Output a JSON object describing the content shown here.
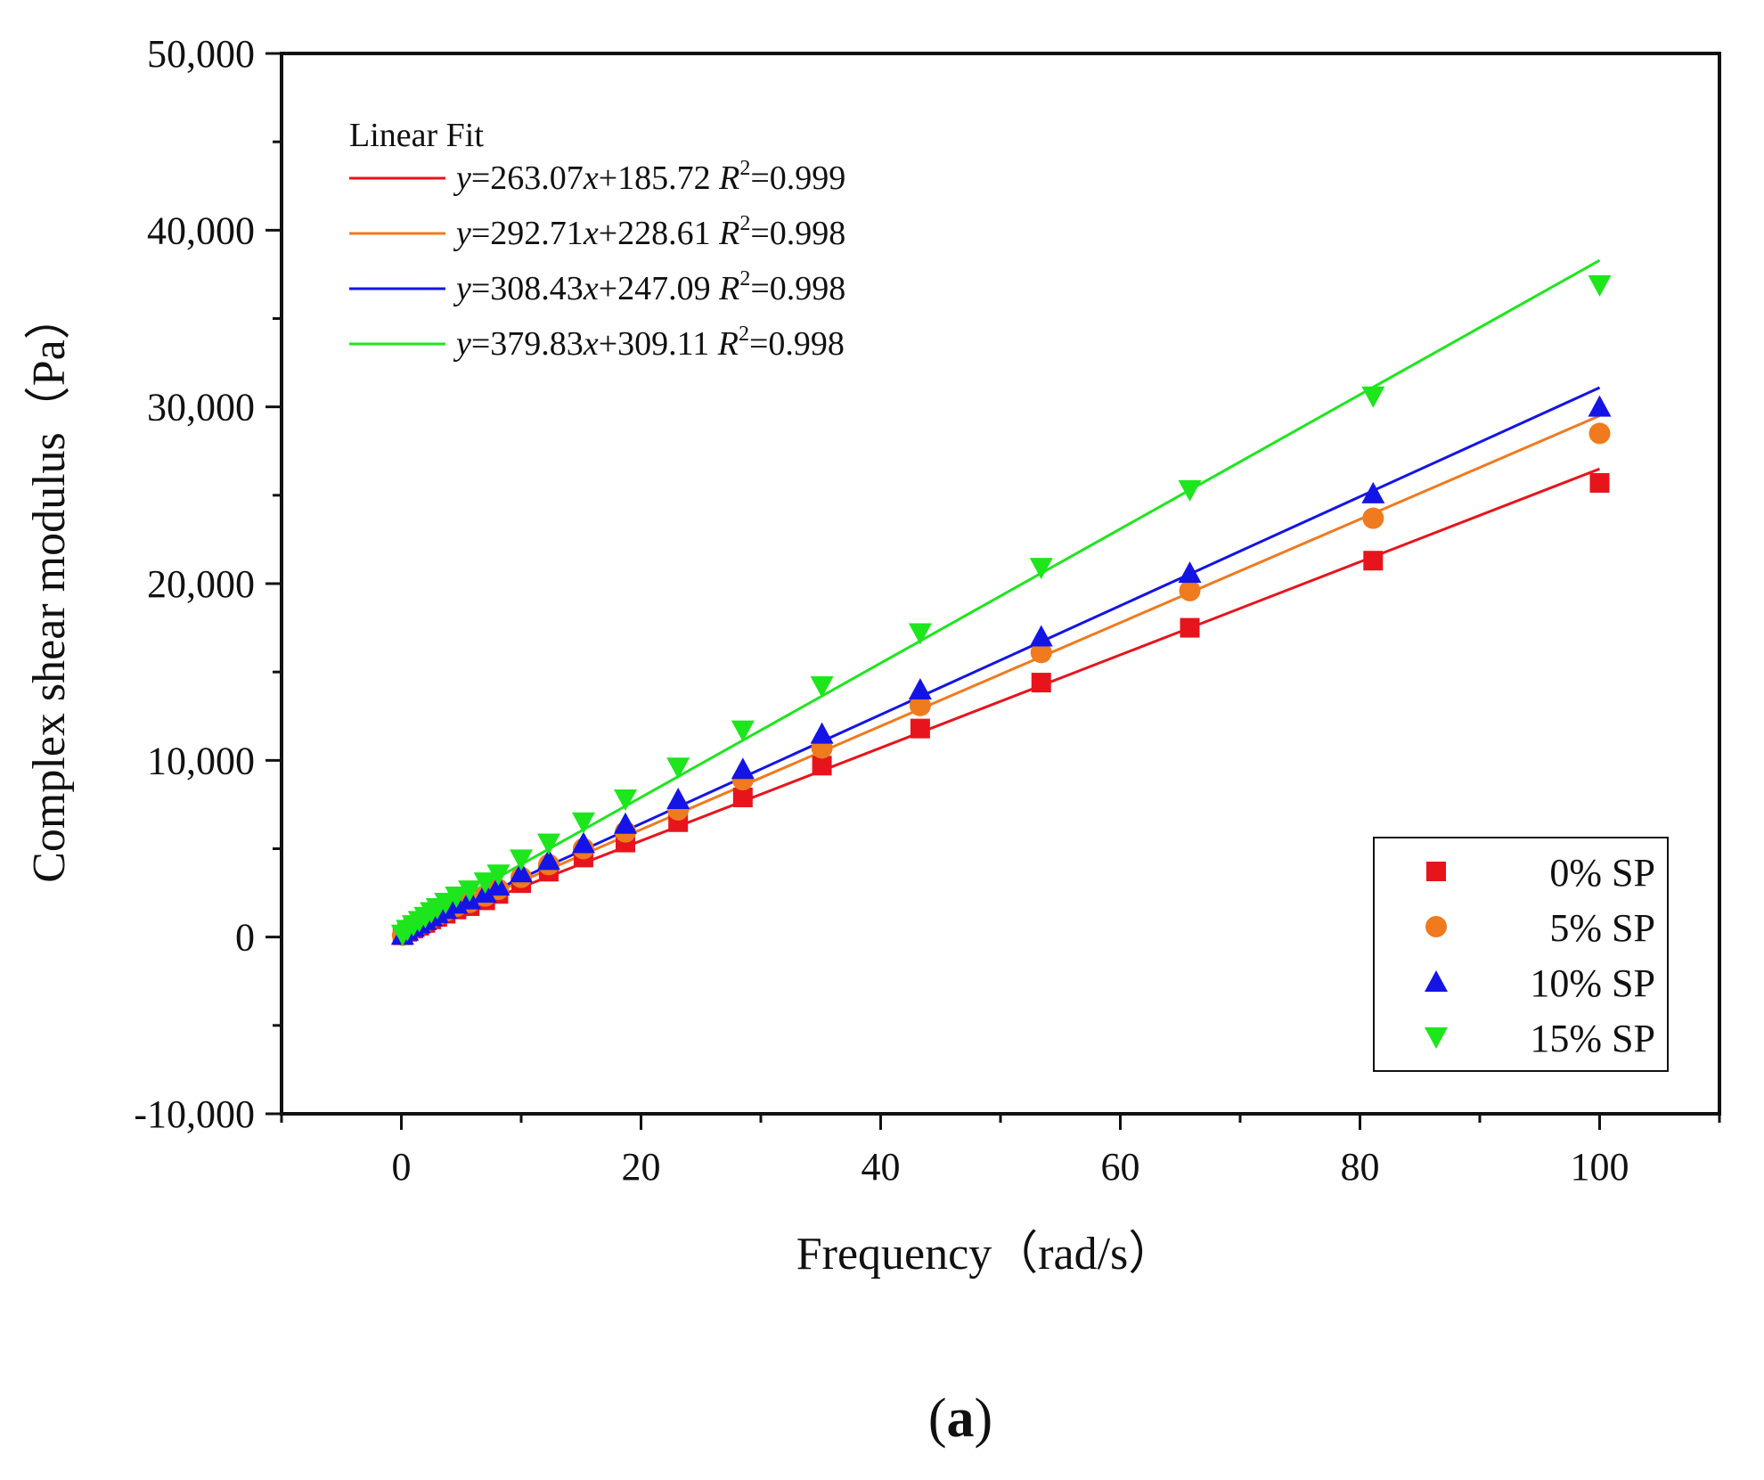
{
  "chart_data": {
    "type": "scatter",
    "xlabel": "Frequency（rad/s）",
    "ylabel": "Complex shear modulus（Pa）",
    "xlim": [
      -10,
      110
    ],
    "ylim": [
      -10000,
      50000
    ],
    "x_ticks": [
      0,
      20,
      40,
      60,
      80,
      100
    ],
    "x_tick_labels": [
      "0",
      "20",
      "40",
      "60",
      "80",
      "100"
    ],
    "y_ticks": [
      -10000,
      0,
      10000,
      20000,
      30000,
      40000,
      50000
    ],
    "y_tick_labels": [
      "-10,000",
      "0",
      "10,000",
      "20,000",
      "30,000",
      "40,000",
      "50,000"
    ],
    "fit_legend": {
      "title": "Linear Fit",
      "placement": "top-left",
      "entries": [
        {
          "label": "y=263.07x+185.72 R2=0.999",
          "y": "y",
          "rest": "=263.07",
          "xvar": "x",
          "rest2": "+185.72 ",
          "R": "R",
          "sup": "2",
          "r2": "=0.999"
        },
        {
          "label": "y=292.71x+228.61 R2=0.998",
          "y": "y",
          "rest": "=292.71",
          "xvar": "x",
          "rest2": "+228.61 ",
          "R": "R",
          "sup": "2",
          "r2": "=0.998"
        },
        {
          "label": "y=308.43x+247.09 R2=0.998",
          "y": "y",
          "rest": "=308.43",
          "xvar": "x",
          "rest2": "+247.09 ",
          "R": "R",
          "sup": "2",
          "r2": "=0.998"
        },
        {
          "label": "y=379.83x+309.11 R2=0.998",
          "y": "y",
          "rest": "=379.83",
          "xvar": "x",
          "rest2": "+309.11 ",
          "R": "R",
          "sup": "2",
          "r2": "=0.998"
        }
      ]
    },
    "x": [
      0.1,
      0.5,
      1,
      1.5,
      2,
      2.5,
      3,
      3.7,
      4.6,
      5.7,
      7,
      8.1,
      10,
      12.3,
      15.2,
      18.7,
      23.1,
      28.5,
      35.1,
      43.3,
      53.4,
      65.8,
      81.1,
      100
    ],
    "series": [
      {
        "name": "0% SP",
        "marker": "square",
        "color": "#e8141c",
        "fit": {
          "slope": 263.07,
          "intercept": 185.72
        },
        "values": [
          100,
          300,
          480,
          640,
          800,
          1000,
          1140,
          1320,
          1560,
          1750,
          2080,
          2440,
          3050,
          3700,
          4500,
          5350,
          6500,
          7900,
          9700,
          11800,
          14400,
          17500,
          21300,
          25700
        ]
      },
      {
        "name": "5% SP",
        "marker": "circle",
        "color": "#f07a1e",
        "fit": {
          "slope": 292.71,
          "intercept": 228.61
        },
        "values": [
          100,
          330,
          520,
          700,
          880,
          1080,
          1250,
          1470,
          1740,
          1960,
          2320,
          2700,
          3380,
          4100,
          5000,
          5950,
          7200,
          8900,
          10700,
          13100,
          16100,
          19600,
          23700,
          28500
        ]
      },
      {
        "name": "10% SP",
        "marker": "triangle-up",
        "color": "#1414e6",
        "fit": {
          "slope": 308.43,
          "intercept": 247.09
        },
        "values": [
          120,
          350,
          560,
          760,
          950,
          1160,
          1350,
          1580,
          1880,
          2120,
          2500,
          2900,
          3650,
          4350,
          5300,
          6400,
          7800,
          9500,
          11500,
          14000,
          17000,
          20600,
          25100,
          30000
        ]
      },
      {
        "name": "15% SP",
        "marker": "triangle-down",
        "color": "#1de61d",
        "fit": {
          "slope": 379.83,
          "intercept": 309.11
        },
        "values": [
          150,
          420,
          680,
          920,
          1150,
          1420,
          1650,
          1950,
          2300,
          2650,
          3100,
          3550,
          4400,
          5300,
          6500,
          7800,
          9600,
          11700,
          14200,
          17200,
          20900,
          25300,
          30600,
          36900
        ]
      }
    ],
    "marker_legend_placement": "bottom-right",
    "caption_parts": {
      "open": "(",
      "letter": "a",
      "close": ")"
    }
  },
  "colors": {
    "axis": "#111111",
    "background": "#ffffff"
  }
}
